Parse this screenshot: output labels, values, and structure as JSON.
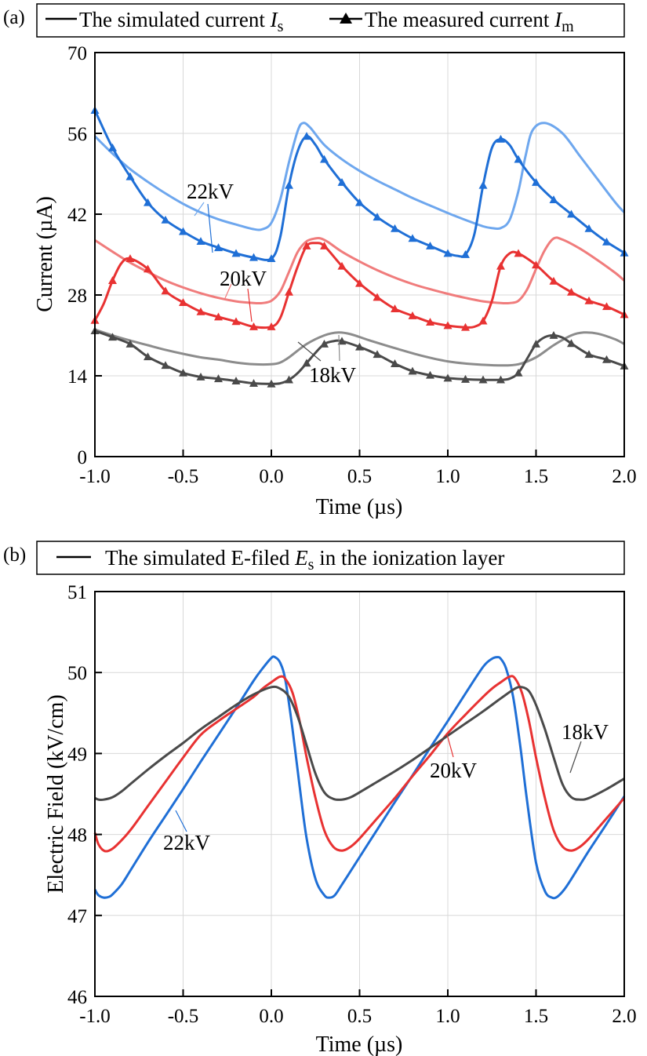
{
  "chart_data": [
    {
      "type": "line",
      "panel_label": "(a)",
      "xlabel": "Time (µs)",
      "ylabel": "Current (µA)",
      "xlim": [
        -1.0,
        2.0
      ],
      "ylim": [
        0,
        70
      ],
      "x_ticks": [
        "-1.0",
        "-0.5",
        "0.0",
        "0.5",
        "1.0",
        "1.5",
        "2.0"
      ],
      "y_ticks": [
        "0",
        "14",
        "28",
        "42",
        "56",
        "70"
      ],
      "grid": true,
      "legend": {
        "placement": "top",
        "simulated": {
          "text": "The simulated current ",
          "symbol": "I",
          "sub": "s"
        },
        "measured": {
          "text": "The measured current ",
          "symbol": "I",
          "sub": "m"
        }
      },
      "series": [
        {
          "label": "22kV",
          "kind": "simulated",
          "color": "#6ea7ee",
          "x": [
            -1.0,
            -0.9,
            -0.8,
            -0.7,
            -0.6,
            -0.5,
            -0.4,
            -0.3,
            -0.2,
            -0.1,
            -0.05,
            0.0,
            0.05,
            0.1,
            0.15,
            0.18,
            0.22,
            0.3,
            0.4,
            0.5,
            0.6,
            0.7,
            0.8,
            0.9,
            1.0,
            1.1,
            1.2,
            1.25,
            1.3,
            1.35,
            1.4,
            1.44,
            1.48,
            1.55,
            1.65,
            1.75,
            1.85,
            1.95,
            2.0
          ],
          "y": [
            55.5,
            52.5,
            49.8,
            47.6,
            45.6,
            43.8,
            42.3,
            41.1,
            40.2,
            39.4,
            39.4,
            40.5,
            44.5,
            51,
            56.5,
            57.8,
            57,
            54,
            51.5,
            49.5,
            47.8,
            46.3,
            44.8,
            43.5,
            42.2,
            41,
            39.9,
            39.6,
            39.6,
            41,
            46,
            52,
            56.5,
            57.8,
            56,
            52,
            48,
            44,
            42.3
          ]
        },
        {
          "label": "22kV",
          "kind": "measured",
          "color": "#1f6fd6",
          "x": [
            -1.0,
            -0.9,
            -0.8,
            -0.7,
            -0.6,
            -0.5,
            -0.4,
            -0.3,
            -0.2,
            -0.1,
            0.0,
            0.05,
            0.1,
            0.15,
            0.2,
            0.25,
            0.3,
            0.4,
            0.5,
            0.6,
            0.7,
            0.8,
            0.9,
            1.0,
            1.05,
            1.1,
            1.15,
            1.2,
            1.25,
            1.3,
            1.35,
            1.4,
            1.5,
            1.6,
            1.7,
            1.8,
            1.9,
            2.0
          ],
          "y": [
            60,
            53.5,
            48.5,
            44,
            41,
            39,
            37.3,
            36.2,
            35.2,
            34.5,
            34.3,
            38,
            47,
            53,
            55.5,
            54,
            51.5,
            47.5,
            44,
            41.5,
            39.5,
            37.8,
            36.5,
            35.2,
            34.8,
            35,
            38.5,
            47,
            53.5,
            55,
            54,
            51.5,
            47.5,
            44.5,
            42,
            39.5,
            37.2,
            35.3
          ]
        },
        {
          "label": "20kV",
          "kind": "simulated",
          "color": "#f07c7c",
          "x": [
            -1.0,
            -0.9,
            -0.8,
            -0.7,
            -0.6,
            -0.5,
            -0.4,
            -0.3,
            -0.2,
            -0.1,
            -0.05,
            0.0,
            0.05,
            0.1,
            0.15,
            0.2,
            0.25,
            0.28,
            0.32,
            0.4,
            0.5,
            0.6,
            0.7,
            0.8,
            0.9,
            1.0,
            1.1,
            1.2,
            1.3,
            1.35,
            1.4,
            1.45,
            1.5,
            1.55,
            1.6,
            1.65,
            1.75,
            1.85,
            1.95,
            2.0
          ],
          "y": [
            37.5,
            35.5,
            33.6,
            32,
            30.5,
            29.3,
            28.3,
            27.5,
            26.9,
            26.6,
            26.6,
            27,
            28.6,
            32,
            35.5,
            37.3,
            37.8,
            37.8,
            37.2,
            35.5,
            33.8,
            32.3,
            31,
            29.9,
            29,
            28.2,
            27.5,
            26.9,
            26.6,
            26.6,
            27,
            29,
            32.5,
            35.8,
            37.8,
            37.6,
            36,
            34,
            31.8,
            30.5
          ]
        },
        {
          "label": "20kV",
          "kind": "measured",
          "color": "#e83232",
          "x": [
            -1.0,
            -0.95,
            -0.9,
            -0.85,
            -0.8,
            -0.7,
            -0.6,
            -0.5,
            -0.4,
            -0.3,
            -0.2,
            -0.1,
            0.0,
            0.05,
            0.1,
            0.15,
            0.2,
            0.25,
            0.3,
            0.4,
            0.5,
            0.6,
            0.7,
            0.8,
            0.9,
            1.0,
            1.1,
            1.15,
            1.2,
            1.25,
            1.3,
            1.35,
            1.4,
            1.5,
            1.6,
            1.7,
            1.8,
            1.9,
            2.0
          ],
          "y": [
            23.6,
            26.5,
            30.5,
            33.5,
            34.3,
            32.5,
            28.7,
            26.7,
            25.1,
            24.2,
            23.4,
            22.5,
            22.5,
            24,
            28.5,
            33,
            36.5,
            37,
            36.5,
            33,
            30,
            27.6,
            25.6,
            24.4,
            23.3,
            22.7,
            22.4,
            22.5,
            23.5,
            27,
            33,
            35.2,
            35.2,
            33.2,
            30.4,
            28.5,
            27,
            26,
            24.6
          ]
        },
        {
          "label": "18kV",
          "kind": "simulated",
          "color": "#8c8c8c",
          "x": [
            -1.0,
            -0.9,
            -0.8,
            -0.7,
            -0.6,
            -0.5,
            -0.4,
            -0.3,
            -0.2,
            -0.1,
            0.0,
            0.05,
            0.1,
            0.2,
            0.3,
            0.38,
            0.45,
            0.55,
            0.7,
            0.85,
            1.0,
            1.15,
            1.3,
            1.4,
            1.5,
            1.6,
            1.7,
            1.77,
            1.85,
            1.95,
            2.0
          ],
          "y": [
            22.0,
            21.0,
            20.1,
            19.3,
            18.5,
            17.8,
            17.2,
            16.8,
            16.3,
            16.0,
            16.0,
            16.3,
            17.2,
            19.5,
            21,
            21.5,
            21.2,
            20.2,
            18.8,
            17.5,
            16.5,
            16.0,
            15.8,
            16.0,
            17.2,
            19.3,
            21,
            21.5,
            21.3,
            20.3,
            19.5
          ]
        },
        {
          "label": "18kV",
          "kind": "measured",
          "color": "#4a4a4a",
          "x": [
            -1.0,
            -0.9,
            -0.8,
            -0.7,
            -0.6,
            -0.5,
            -0.4,
            -0.3,
            -0.2,
            -0.1,
            0.0,
            0.05,
            0.1,
            0.15,
            0.2,
            0.25,
            0.3,
            0.35,
            0.4,
            0.5,
            0.6,
            0.7,
            0.8,
            0.9,
            1.0,
            1.1,
            1.2,
            1.3,
            1.35,
            1.4,
            1.45,
            1.5,
            1.55,
            1.6,
            1.65,
            1.7,
            1.8,
            1.9,
            2.0
          ],
          "y": [
            21.8,
            20.7,
            19.5,
            17.3,
            15.8,
            14.5,
            13.8,
            13.5,
            13.1,
            12.7,
            12.6,
            12.7,
            13.3,
            14.5,
            16.2,
            18,
            19.5,
            20,
            20,
            19,
            17.7,
            16.1,
            14.8,
            14.1,
            13.6,
            13.4,
            13.3,
            13.3,
            13.5,
            14.5,
            17,
            19.5,
            20.7,
            21,
            20.6,
            19.6,
            17.7,
            16.8,
            15.7
          ]
        }
      ],
      "annotations": [
        {
          "text": "22kV",
          "color": "#1f6fd6"
        },
        {
          "text": "20kV",
          "color": "#e83232"
        },
        {
          "text": "18kV",
          "color": "#555555"
        }
      ]
    },
    {
      "type": "line",
      "panel_label": "(b)",
      "xlabel": "Time (µs)",
      "ylabel": "Electric Field (kV/cm)",
      "xlim": [
        -1.0,
        2.0
      ],
      "ylim": [
        46,
        51
      ],
      "x_ticks": [
        "-1.0",
        "-0.5",
        "0.0",
        "0.5",
        "1.0",
        "1.5",
        "2.0"
      ],
      "y_ticks": [
        "46",
        "47",
        "48",
        "49",
        "50",
        "51"
      ],
      "grid": true,
      "legend": {
        "placement": "top",
        "simulated": {
          "text": "The simulated E-filed ",
          "symbol": "E",
          "sub": "s",
          "suffix": " in the ionization layer"
        }
      },
      "series": [
        {
          "label": "22kV",
          "color": "#1f6fd6",
          "x": [
            -1.0,
            -0.98,
            -0.95,
            -0.92,
            -0.9,
            -0.85,
            -0.8,
            -0.7,
            -0.6,
            -0.5,
            -0.4,
            -0.3,
            -0.2,
            -0.1,
            -0.05,
            0.0,
            0.02,
            0.05,
            0.08,
            0.12,
            0.16,
            0.2,
            0.25,
            0.3,
            0.33,
            0.36,
            0.4,
            0.45,
            0.5,
            0.6,
            0.7,
            0.8,
            0.9,
            1.0,
            1.1,
            1.2,
            1.25,
            1.28,
            1.3,
            1.33,
            1.37,
            1.41,
            1.45,
            1.5,
            1.55,
            1.59,
            1.62,
            1.66,
            1.7,
            1.8,
            1.9,
            2.0
          ],
          "y": [
            47.32,
            47.25,
            47.22,
            47.23,
            47.26,
            47.38,
            47.55,
            47.9,
            48.23,
            48.56,
            48.9,
            49.23,
            49.56,
            49.9,
            50.05,
            50.18,
            50.19,
            50.12,
            49.9,
            49.3,
            48.6,
            47.95,
            47.45,
            47.25,
            47.22,
            47.25,
            47.38,
            47.55,
            47.72,
            48.06,
            48.4,
            48.73,
            49.07,
            49.4,
            49.74,
            50.07,
            50.17,
            50.19,
            50.17,
            50.05,
            49.7,
            49.1,
            48.4,
            47.65,
            47.3,
            47.22,
            47.23,
            47.32,
            47.45,
            47.8,
            48.13,
            48.47
          ]
        },
        {
          "label": "20kV",
          "color": "#e83232",
          "x": [
            -1.0,
            -0.98,
            -0.95,
            -0.92,
            -0.88,
            -0.8,
            -0.7,
            -0.6,
            -0.5,
            -0.4,
            -0.3,
            -0.2,
            -0.1,
            -0.05,
            0.0,
            0.05,
            0.08,
            0.12,
            0.16,
            0.2,
            0.25,
            0.3,
            0.35,
            0.4,
            0.45,
            0.5,
            0.6,
            0.7,
            0.8,
            0.9,
            1.0,
            1.1,
            1.2,
            1.25,
            1.3,
            1.35,
            1.38,
            1.42,
            1.46,
            1.5,
            1.55,
            1.6,
            1.65,
            1.7,
            1.75,
            1.8,
            1.9,
            2.0
          ],
          "y": [
            48.02,
            47.88,
            47.8,
            47.8,
            47.86,
            48.05,
            48.35,
            48.65,
            48.95,
            49.23,
            49.4,
            49.55,
            49.7,
            49.8,
            49.88,
            49.95,
            49.92,
            49.75,
            49.4,
            48.95,
            48.45,
            48.05,
            47.85,
            47.8,
            47.85,
            47.95,
            48.2,
            48.45,
            48.72,
            48.98,
            49.25,
            49.48,
            49.7,
            49.8,
            49.88,
            49.95,
            49.93,
            49.75,
            49.4,
            48.95,
            48.45,
            48.05,
            47.85,
            47.8,
            47.85,
            47.95,
            48.2,
            48.45
          ]
        },
        {
          "label": "18kV",
          "color": "#4a4a4a",
          "x": [
            -1.0,
            -0.98,
            -0.95,
            -0.9,
            -0.85,
            -0.8,
            -0.7,
            -0.6,
            -0.5,
            -0.4,
            -0.3,
            -0.2,
            -0.1,
            0.0,
            0.05,
            0.1,
            0.15,
            0.2,
            0.25,
            0.3,
            0.35,
            0.4,
            0.45,
            0.5,
            0.6,
            0.7,
            0.8,
            0.9,
            1.0,
            1.1,
            1.2,
            1.3,
            1.38,
            1.42,
            1.46,
            1.5,
            1.55,
            1.6,
            1.65,
            1.7,
            1.75,
            1.8,
            1.9,
            2.0
          ],
          "y": [
            48.45,
            48.43,
            48.43,
            48.46,
            48.53,
            48.62,
            48.8,
            48.97,
            49.13,
            49.3,
            49.45,
            49.6,
            49.73,
            49.82,
            49.8,
            49.7,
            49.45,
            49.1,
            48.75,
            48.52,
            48.44,
            48.43,
            48.46,
            48.52,
            48.65,
            48.78,
            48.92,
            49.07,
            49.22,
            49.37,
            49.52,
            49.68,
            49.8,
            49.82,
            49.77,
            49.6,
            49.3,
            48.95,
            48.62,
            48.46,
            48.43,
            48.45,
            48.56,
            48.69
          ]
        }
      ],
      "annotations": [
        {
          "text": "22kV",
          "color": "#1f6fd6"
        },
        {
          "text": "20kV",
          "color": "#e83232"
        },
        {
          "text": "18kV",
          "color": "#555555"
        }
      ]
    }
  ]
}
